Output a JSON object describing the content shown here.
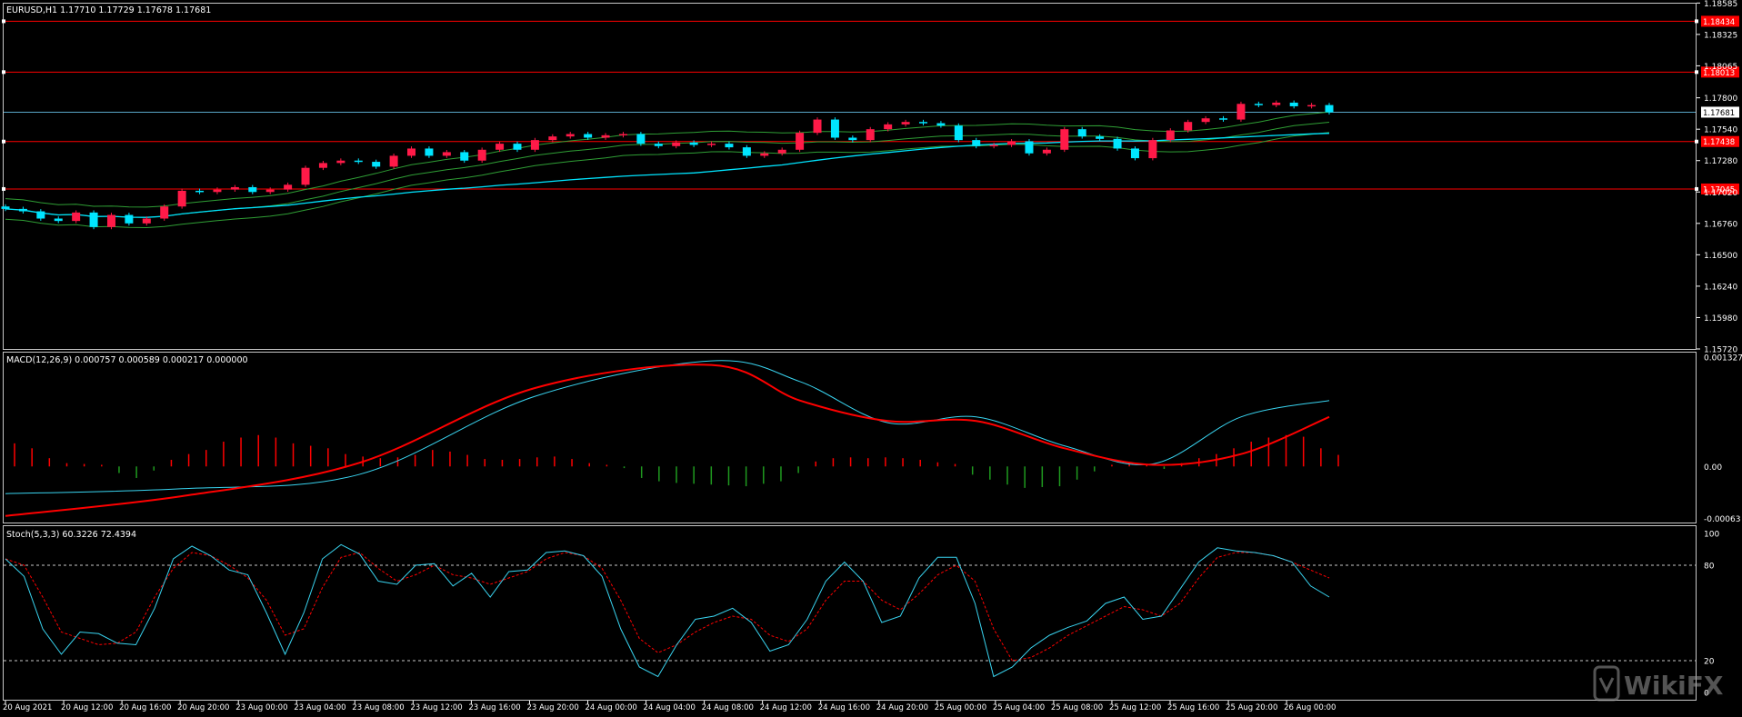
{
  "symbol_header": "EURUSD,H1  1.17710 1.17729 1.17678 1.17681",
  "macd_header": "MACD(12,26,9) 0.000757 0.000589 0.000217 0.000000",
  "stoch_header": "Stoch(5,3,3) 60.3226 72.4394",
  "watermark": "WikiFX",
  "colors": {
    "bull": "#ff1a48",
    "bear": "#00e5ff",
    "ma": "#00e5ff",
    "bands": "#2f9e35",
    "level": "#ff0000",
    "macd_line": "#39d4f0",
    "signal": "#ff0000",
    "hist_pos": "#ff0000",
    "hist_neg": "#1f9a1f",
    "stoch_main": "#39d4f0",
    "stoch_signal": "#ff0000",
    "frame": "#ffffff"
  },
  "chart_data": [
    {
      "type": "candlestick",
      "title": "EURUSD,H1",
      "ylim": [
        1.1572,
        1.1858
      ],
      "y_ticks": [
        "1.18585",
        "1.18325",
        "1.18065",
        "1.17800",
        "1.17540",
        "1.17280",
        "1.17020",
        "1.16760",
        "1.16500",
        "1.16240",
        "1.15980",
        "1.15720"
      ],
      "x_ticks": [
        "20 Aug 2021",
        "20 Aug 12:00",
        "20 Aug 16:00",
        "20 Aug 20:00",
        "23 Aug 00:00",
        "23 Aug 04:00",
        "23 Aug 08:00",
        "23 Aug 12:00",
        "23 Aug 16:00",
        "23 Aug 20:00",
        "24 Aug 00:00",
        "24 Aug 04:00",
        "24 Aug 08:00",
        "24 Aug 12:00",
        "24 Aug 16:00",
        "24 Aug 20:00",
        "25 Aug 00:00",
        "25 Aug 04:00",
        "25 Aug 08:00",
        "25 Aug 12:00",
        "25 Aug 16:00",
        "25 Aug 20:00",
        "26 Aug 00:00"
      ],
      "current_price": "1.17681",
      "levels": [
        {
          "price": 1.18434,
          "label": "1.18434"
        },
        {
          "price": 1.18013,
          "label": "1.18013"
        },
        {
          "price": 1.17438,
          "label": "1.17438"
        },
        {
          "price": 1.17045,
          "label": "1.17045"
        }
      ],
      "candles_close": [
        1.1688,
        1.1686,
        1.168,
        1.1678,
        1.1685,
        1.1673,
        1.1683,
        1.1676,
        1.168,
        1.169,
        1.1703,
        1.1702,
        1.1704,
        1.1706,
        1.1702,
        1.1704,
        1.1708,
        1.1722,
        1.1726,
        1.1728,
        1.1727,
        1.1723,
        1.1732,
        1.1738,
        1.1732,
        1.1735,
        1.1728,
        1.1737,
        1.1742,
        1.1737,
        1.1745,
        1.1748,
        1.175,
        1.1747,
        1.1749,
        1.175,
        1.1742,
        1.174,
        1.1743,
        1.1741,
        1.1742,
        1.1739,
        1.1732,
        1.1734,
        1.1737,
        1.1751,
        1.1762,
        1.1747,
        1.1745,
        1.1754,
        1.1758,
        1.176,
        1.1759,
        1.1757,
        1.1745,
        1.174,
        1.1741,
        1.1744,
        1.1734,
        1.1737,
        1.1754,
        1.1748,
        1.1746,
        1.1738,
        1.173,
        1.1745,
        1.1753,
        1.176,
        1.1763,
        1.1762,
        1.1775,
        1.1774,
        1.1776,
        1.1773,
        1.1774,
        1.1768
      ]
    },
    {
      "type": "bar+line",
      "title": "MACD(12,26,9)",
      "y_ticks": [
        "0.001327",
        "0.00",
        "-0.00063"
      ],
      "ylim": [
        -0.00068,
        0.00138
      ],
      "x": [
        0,
        10,
        20,
        30,
        40,
        45,
        50,
        55,
        60,
        65,
        70,
        75
      ],
      "macd": [
        -0.00033,
        -0.00027,
        -0.0001,
        0.00085,
        0.00128,
        0.00103,
        0.00053,
        0.0006,
        0.00025,
        3e-05,
        0.0006,
        0.0008
      ],
      "signal": [
        -0.0006,
        -0.00036,
        4e-05,
        0.00095,
        0.00123,
        0.0008,
        0.00055,
        0.00055,
        0.00022,
        2e-05,
        0.00015,
        0.0006
      ],
      "histogram": [
        0.00028,
        0.00022,
        0.0001,
        4e-05,
        3e-05,
        2e-05,
        -8e-05,
        -0.00014,
        -5e-05,
        8e-05,
        0.00015,
        0.0002,
        0.0003,
        0.00035,
        0.00038,
        0.00035,
        0.00028,
        0.00025,
        0.00022,
        0.00015,
        0.00012,
        0.0001,
        0.00011,
        0.00014,
        0.0002,
        0.00018,
        0.00014,
        9e-05,
        8e-05,
        9e-05,
        0.00011,
        0.00012,
        9e-05,
        4e-05,
        2e-05,
        -2e-05,
        -0.00014,
        -0.00018,
        -0.0002,
        -0.00021,
        -0.00022,
        -0.00023,
        -0.00024,
        -0.00021,
        -0.00018,
        -8e-05,
        6e-05,
        0.0001,
        0.00011,
        0.0001,
        0.00011,
        0.0001,
        8e-05,
        5e-05,
        3e-05,
        -0.0001,
        -0.00016,
        -0.00022,
        -0.00026,
        -0.00025,
        -0.00024,
        -0.00016,
        -6e-05,
        2e-05,
        5e-05,
        2e-05,
        -3e-05,
        4e-05,
        0.0001,
        0.00015,
        0.00022,
        0.0003,
        0.00035,
        0.00038,
        0.00036,
        0.00022,
        0.00014
      ]
    },
    {
      "type": "line",
      "title": "Stoch(5,3,3)",
      "y_ticks": [
        "100",
        "80",
        "20",
        "0"
      ],
      "ylim": [
        0,
        100
      ],
      "levels": [
        80,
        20
      ],
      "main": [
        84,
        73,
        40,
        24,
        38,
        37,
        31,
        30,
        53,
        84,
        92,
        86,
        77,
        74,
        50,
        24,
        50,
        84,
        93,
        87,
        70,
        68,
        80,
        81,
        67,
        75,
        60,
        76,
        77,
        88,
        89,
        86,
        73,
        40,
        16,
        10,
        30,
        46,
        48,
        53,
        44,
        26,
        30,
        46,
        70,
        82,
        70,
        44,
        48,
        72,
        85,
        85,
        56,
        10,
        16,
        28,
        36,
        41,
        45,
        56,
        60,
        46,
        48,
        65,
        82,
        91,
        89,
        88,
        86,
        82,
        67,
        60
      ],
      "signal": [
        84,
        80,
        60,
        38,
        34,
        30,
        31,
        38,
        60,
        78,
        88,
        86,
        80,
        72,
        58,
        36,
        40,
        66,
        85,
        88,
        78,
        70,
        74,
        80,
        74,
        72,
        68,
        72,
        76,
        84,
        88,
        86,
        78,
        58,
        34,
        25,
        30,
        38,
        44,
        48,
        46,
        36,
        32,
        40,
        58,
        70,
        70,
        58,
        52,
        62,
        74,
        80,
        70,
        40,
        20,
        22,
        28,
        36,
        42,
        48,
        54,
        52,
        48,
        56,
        72,
        85,
        88,
        88,
        86,
        82,
        77,
        72
      ]
    }
  ]
}
